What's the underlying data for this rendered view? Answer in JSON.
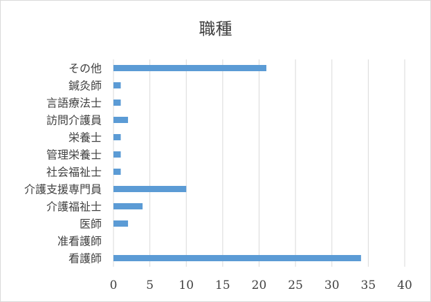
{
  "chart_data": {
    "type": "bar",
    "orientation": "horizontal",
    "title": "職種",
    "xlabel": "",
    "ylabel": "",
    "categories": [
      "その他",
      "鍼灸師",
      "言語療法士",
      "訪問介護員",
      "栄養士",
      "管理栄養士",
      "社会福祉士",
      "介護支援専門員",
      "介護福祉士",
      "医師",
      "准看護師",
      "看護師"
    ],
    "values": [
      21,
      1,
      1,
      2,
      1,
      1,
      1,
      10,
      4,
      2,
      0,
      34
    ],
    "xlim": [
      0,
      40
    ],
    "xticks": [
      0,
      5,
      10,
      15,
      20,
      25,
      30,
      35,
      40
    ],
    "grid": "vertical",
    "legend": "none",
    "colors": {
      "bar": "#5b9bd5",
      "grid": "#d9d9d9",
      "text": "#404040"
    }
  }
}
